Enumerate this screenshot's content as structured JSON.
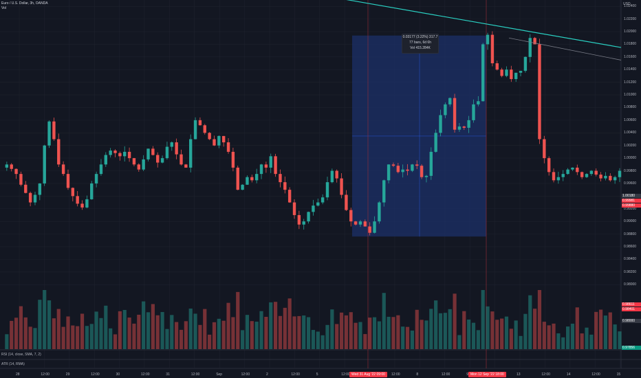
{
  "legend": {
    "symbol": "Euro / U.S. Dollar, 3h, OANDA",
    "vol_label": "Vol"
  },
  "axis": {
    "currency": "USD",
    "y_ticks": [
      "1.02400",
      "1.02200",
      "1.02000",
      "1.01800",
      "1.01600",
      "1.01400",
      "1.01200",
      "1.01000",
      "1.00800",
      "1.00600",
      "1.00400",
      "1.00200",
      "1.00000",
      "0.99800",
      "0.99600",
      "0.99400",
      "0.99200",
      "0.99000",
      "0.98800",
      "0.98600",
      "0.98400",
      "0.98200",
      "0.98000"
    ],
    "x_ticks": [
      "28",
      "12:00",
      "29",
      "12:00",
      "30",
      "12:00",
      "31",
      "12:00",
      "Sep",
      "12:00",
      "2",
      "12:00",
      "5",
      "12:00",
      "6",
      "12:00",
      "8",
      "12:00",
      "9",
      "12:00",
      "13",
      "12:00",
      "14",
      "12:00",
      "15"
    ],
    "x_badge_left": "Wed 31 Aug '22  09:00",
    "x_badge_right": "Mon 12 Sep '22  18:00"
  },
  "price_tags": [
    {
      "text": "1.00180",
      "color": "#363a45"
    },
    {
      "text": "0.99981",
      "color": "#f23645"
    },
    {
      "text": "0.99880",
      "color": "#f23645"
    },
    {
      "text": "0.98611",
      "color": "#f23645"
    },
    {
      "text": "0.98401",
      "color": "#f23645"
    },
    {
      "text": "0.98000",
      "color": "#363a45"
    },
    {
      "text": "0.97856",
      "color": "#089981"
    }
  ],
  "measure": {
    "line1": "0.03177 (3.22%) 317.7",
    "line2": "77 bars, 6d 6h",
    "line3": "Vol 415.284K"
  },
  "panes": {
    "rsi_label": "RSI (14, close, SMA, 7, 2)",
    "atr_label": "ATR (14, RMA)"
  },
  "colors": {
    "up": "#26a69a",
    "down": "#ef5350",
    "background": "#131722",
    "grid": "#1e222d",
    "trendline": "#2ad1c3",
    "selection": "#1c3068"
  },
  "chart_data": {
    "type": "candlestick",
    "title": "Euro / U.S. Dollar, 3h, OANDA",
    "ylabel": "USD",
    "ylim": [
      0.9785,
      1.025
    ],
    "close_path": [
      0.9985,
      0.999,
      0.9983,
      0.9975,
      0.9958,
      0.9945,
      0.993,
      0.9942,
      0.996,
      1.002,
      1.0058,
      1.003,
      0.999,
      0.9975,
      0.9953,
      0.994,
      0.9928,
      0.9922,
      0.9935,
      0.996,
      0.9975,
      0.999,
      1.0005,
      1.0012,
      1.0008,
      1.0003,
      1.001,
      1.0,
      0.999,
      0.9982,
      0.9998,
      1.0015,
      1.0005,
      0.9993,
      1.0,
      1.0018,
      1.0025,
      1.0006,
      0.999,
      0.9985,
      1.003,
      1.006,
      1.0052,
      1.004,
      1.003,
      1.002,
      1.0035,
      1.0025,
      1.001,
      0.9985,
      0.995,
      0.9958,
      0.997,
      0.9965,
      0.9975,
      0.999,
      0.9985,
      1.0003,
      0.9975,
      0.9962,
      0.995,
      0.993,
      0.991,
      0.9895,
      0.99,
      0.9915,
      0.9925,
      0.993,
      0.9938,
      0.9962,
      0.998,
      0.9968,
      0.9942,
      0.9918,
      0.99,
      0.9895,
      0.99,
      0.9892,
      0.9882,
      0.99,
      0.993,
      0.9965,
      0.999,
      0.9988,
      0.9978,
      0.9982,
      0.998,
      0.999,
      0.9988,
      0.997,
      0.9972,
      1.001,
      1.004,
      1.0068,
      1.0085,
      1.0095,
      1.0045,
      1.005,
      1.0048,
      1.006,
      1.0085,
      1.009,
      1.018,
      1.0195,
      1.015,
      1.014,
      1.013,
      1.014,
      1.0125,
      1.0135,
      1.0138,
      1.016,
      1.019,
      1.018,
      1.003,
      1.0,
      0.9978,
      0.9965,
      0.997,
      0.9975,
      0.9982,
      0.9985,
      0.9978,
      0.997,
      0.9975,
      0.998,
      0.9974,
      0.9968,
      0.9972,
      0.9965,
      0.997,
      0.998
    ],
    "trendline_main": {
      "start": 1.031,
      "end": 1.0175
    },
    "trendline_secondary": {
      "start": 1.019,
      "end": 1.0155
    },
    "measured_move": {
      "from": 0.98761,
      "to": 1.01938,
      "change": "0.03177 (3.22%) 317.7"
    }
  }
}
